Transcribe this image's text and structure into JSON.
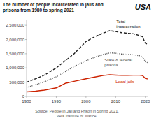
{
  "chart_data": {
    "type": "line",
    "title": "The number of people incarcerated in jails and\nprisons from 1980 to spring 2021",
    "annotations": [
      "USA",
      "Source: People in Jail and Prison in Spring 2021.\nVera Institute of Justice."
    ],
    "x": [
      1980,
      1983,
      1986,
      1990,
      1993,
      1996,
      2000,
      2003,
      2006,
      2008,
      2010,
      2012,
      2014,
      2016,
      2018,
      2019,
      2020,
      2021
    ],
    "series": [
      {
        "name": "Total\nincarceration",
        "color": "#222222",
        "line_style": "dashed",
        "values": [
          500000,
          620000,
          750000,
          1000000,
          1250000,
          1500000,
          1930000,
          2100000,
          2230000,
          2310000,
          2280000,
          2240000,
          2220000,
          2200000,
          2140000,
          2100000,
          1870000,
          1820000
        ]
      },
      {
        "name": "State & federal\nprisons",
        "color": "#555555",
        "line_style": "dotted",
        "values": [
          310000,
          410000,
          510000,
          690000,
          870000,
          1050000,
          1250000,
          1380000,
          1480000,
          1530000,
          1520000,
          1490000,
          1480000,
          1460000,
          1430000,
          1400000,
          1220000,
          1170000
        ]
      },
      {
        "name": "Local jails",
        "color": "#cc2200",
        "line_style": "solid",
        "values": [
          160000,
          185000,
          220000,
          300000,
          460000,
          530000,
          620000,
          680000,
          740000,
          760000,
          750000,
          740000,
          740000,
          745000,
          745000,
          735000,
          630000,
          610000
        ]
      }
    ],
    "xlim": [
      1980,
      2021
    ],
    "xticks": [
      1980,
      1990,
      2000,
      2010,
      2020
    ],
    "ylim": [
      0,
      2700000
    ],
    "yticks": [
      0,
      {
        "value": 500000,
        "label": "500,000"
      },
      {
        "value": 1000000,
        "label": "1,000,000"
      },
      {
        "value": 1500000,
        "label": "1,500,000"
      },
      {
        "value": 2000000,
        "label": "2,000,000"
      },
      {
        "value": 2500000,
        "label": "2,500,000"
      }
    ],
    "grid": false
  }
}
